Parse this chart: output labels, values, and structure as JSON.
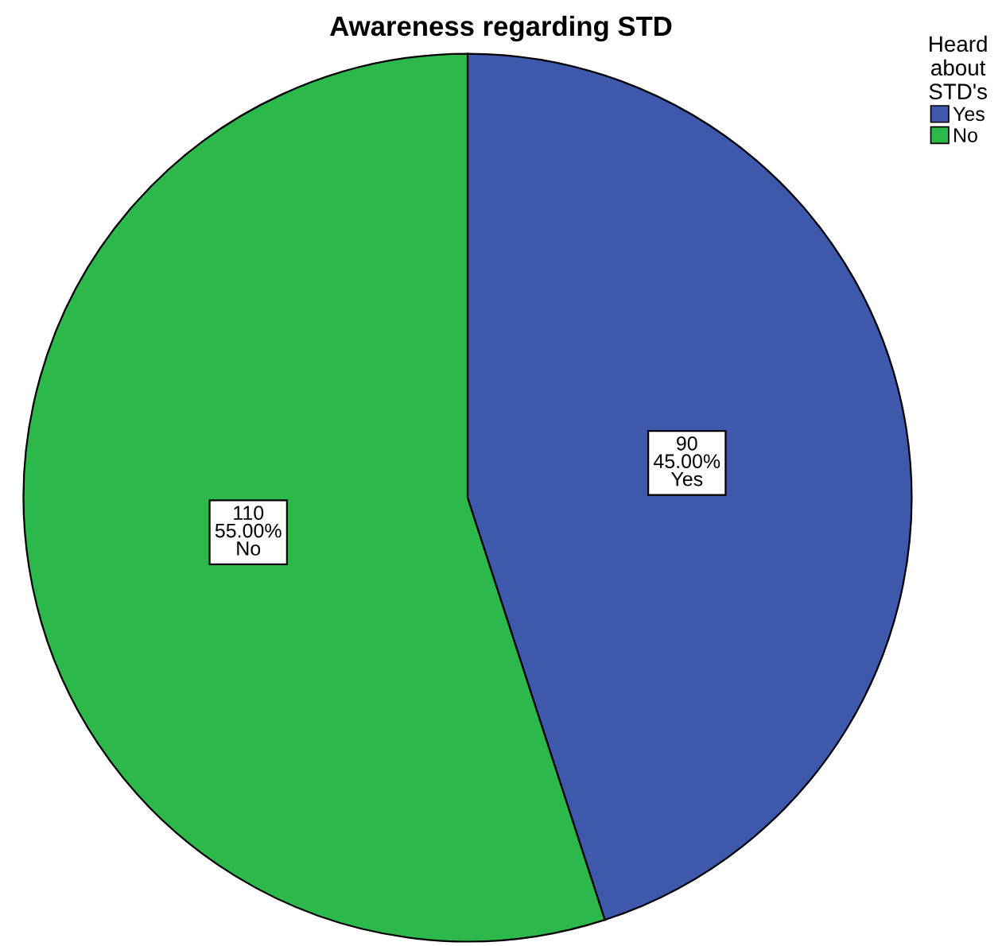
{
  "chart_data": {
    "type": "pie",
    "title": "Awareness regarding STD",
    "legend_title": "Heard\nabout\nSTD's",
    "categories": [
      "Yes",
      "No"
    ],
    "values": [
      90,
      110
    ],
    "colors": [
      "#3e58ac",
      "#2db84b"
    ],
    "value_labels": [
      "90\n45.00%\nYes",
      "110\n55.00%\nNo"
    ],
    "legend": "top right"
  }
}
